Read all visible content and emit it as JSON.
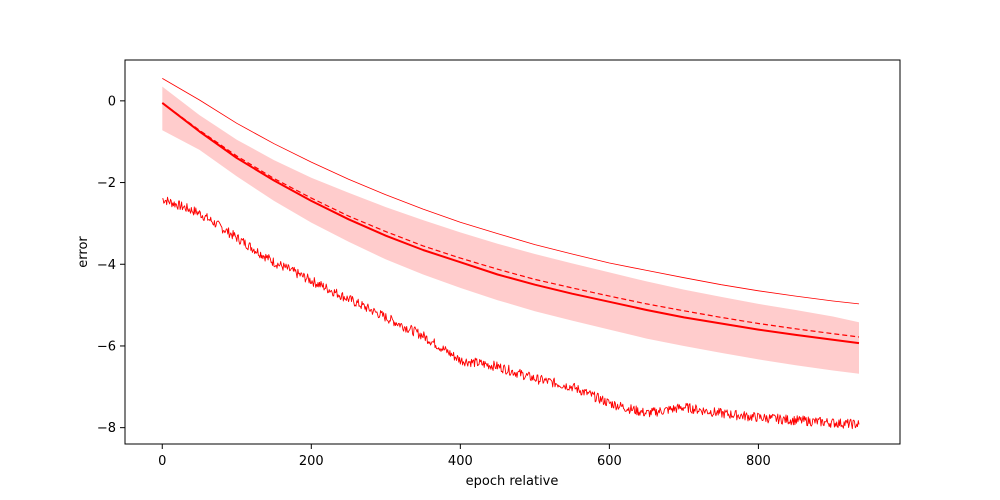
{
  "chart_data": {
    "type": "line",
    "title": "",
    "xlabel": "epoch relative",
    "ylabel": "error",
    "xlim": [
      -50,
      990
    ],
    "ylim": [
      -8.4,
      1.0
    ],
    "xticks": [
      0,
      200,
      400,
      600,
      800
    ],
    "yticks": [
      0,
      -2,
      -4,
      -6,
      -8
    ],
    "x_tick_labels": [
      "0",
      "200",
      "400",
      "600",
      "800"
    ],
    "y_tick_labels": [
      "0",
      "−2",
      "−4",
      "−6",
      "−8"
    ],
    "grid": false,
    "legend": "none",
    "colors": {
      "line": "#ff0000",
      "band": "#ff0000",
      "band_opacity": 0.2
    },
    "x": [
      0,
      50,
      100,
      150,
      200,
      250,
      300,
      350,
      400,
      450,
      500,
      550,
      600,
      650,
      700,
      750,
      800,
      850,
      900,
      935
    ],
    "series": [
      {
        "style": "solid-thick",
        "values": [
          -0.05,
          -0.75,
          -1.4,
          -1.95,
          -2.45,
          -2.9,
          -3.3,
          -3.65,
          -3.95,
          -4.25,
          -4.5,
          -4.72,
          -4.92,
          -5.12,
          -5.3,
          -5.45,
          -5.6,
          -5.73,
          -5.85,
          -5.93
        ]
      },
      {
        "style": "dashed",
        "values": [
          -0.05,
          -0.72,
          -1.35,
          -1.9,
          -2.38,
          -2.82,
          -3.2,
          -3.55,
          -3.85,
          -4.12,
          -4.37,
          -4.58,
          -4.78,
          -4.97,
          -5.14,
          -5.3,
          -5.45,
          -5.58,
          -5.7,
          -5.78
        ]
      },
      {
        "style": "solid-thin",
        "values": [
          0.55,
          0.02,
          -0.55,
          -1.05,
          -1.5,
          -1.92,
          -2.3,
          -2.65,
          -2.97,
          -3.25,
          -3.52,
          -3.75,
          -3.97,
          -4.15,
          -4.33,
          -4.5,
          -4.65,
          -4.78,
          -4.9,
          -4.97
        ]
      },
      {
        "style": "noisy-thin",
        "values": [
          -2.4,
          -2.75,
          -3.35,
          -3.95,
          -4.4,
          -4.85,
          -5.3,
          -5.75,
          -6.35,
          -6.5,
          -6.8,
          -7.0,
          -7.4,
          -7.65,
          -7.5,
          -7.65,
          -7.75,
          -7.82,
          -7.88,
          -7.92
        ]
      }
    ],
    "band": {
      "upper": [
        0.35,
        -0.35,
        -0.95,
        -1.45,
        -1.88,
        -2.25,
        -2.6,
        -2.92,
        -3.22,
        -3.5,
        -3.75,
        -3.98,
        -4.2,
        -4.42,
        -4.62,
        -4.8,
        -4.97,
        -5.12,
        -5.28,
        -5.42
      ],
      "lower": [
        -0.72,
        -1.2,
        -1.85,
        -2.45,
        -2.98,
        -3.45,
        -3.88,
        -4.25,
        -4.58,
        -4.88,
        -5.15,
        -5.38,
        -5.6,
        -5.82,
        -6.0,
        -6.17,
        -6.33,
        -6.47,
        -6.6,
        -6.68
      ]
    }
  }
}
